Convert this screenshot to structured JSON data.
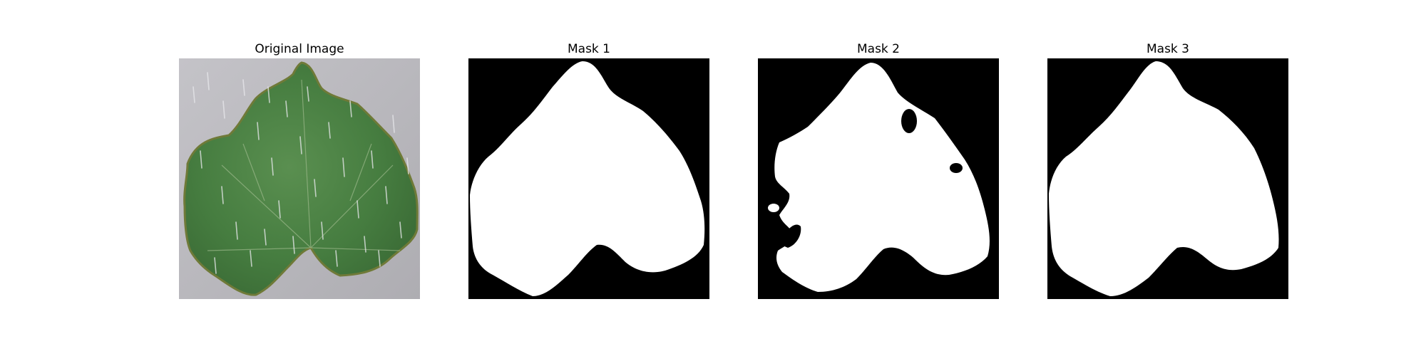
{
  "figure": {
    "panels": [
      {
        "title": "Original Image",
        "kind": "photo"
      },
      {
        "title": "Mask 1",
        "kind": "mask"
      },
      {
        "title": "Mask 2",
        "kind": "mask"
      },
      {
        "title": "Mask 3",
        "kind": "mask"
      }
    ]
  },
  "colors": {
    "mask_background": "#000000",
    "mask_foreground": "#ffffff",
    "photo_background": "#b9b8bd",
    "leaf_dark": "#3e6d39",
    "leaf_mid": "#4e8446",
    "leaf_light": "#6a9a5a",
    "leaf_edge": "#7a7f3a"
  }
}
